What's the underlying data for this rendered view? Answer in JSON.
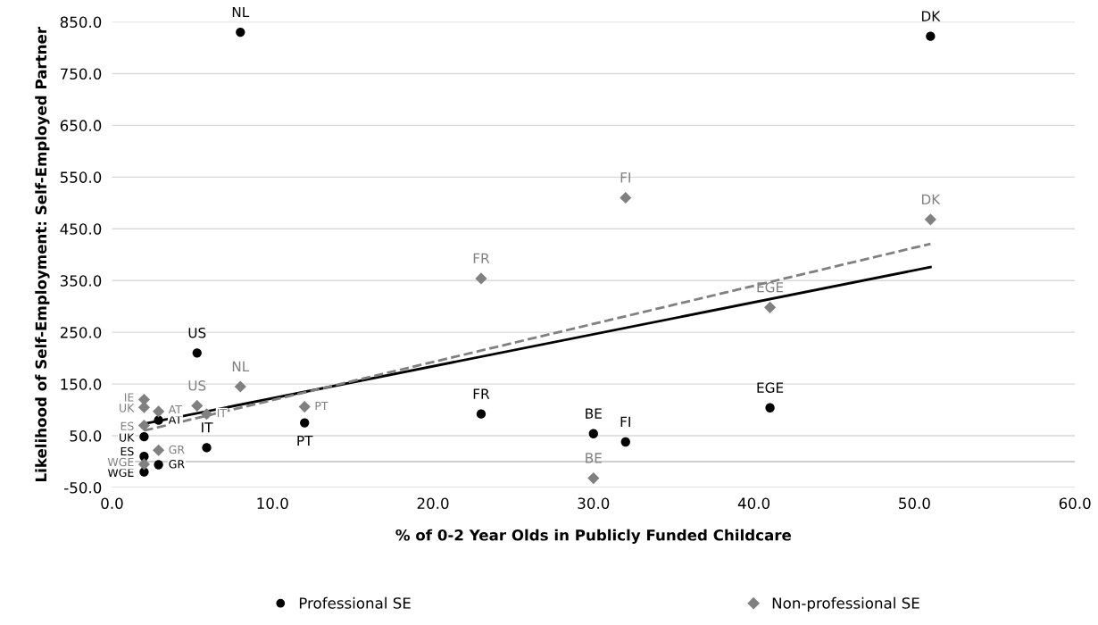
{
  "chart_data": {
    "type": "scatter",
    "xlabel": "% of 0-2 Year Olds in Publicly Funded Childcare",
    "ylabel": "Likelihood of Self-Employment: Self-Employed Partner",
    "xlim": [
      0,
      60
    ],
    "xticks": [
      {
        "value": 0,
        "label": "0.0"
      },
      {
        "value": 10,
        "label": "10.0"
      },
      {
        "value": 20,
        "label": "20.0"
      },
      {
        "value": 30,
        "label": "30.0"
      },
      {
        "value": 40,
        "label": "40.0"
      },
      {
        "value": 50,
        "label": "50.0"
      },
      {
        "value": 60,
        "label": "60.0"
      }
    ],
    "ylim": [
      -50,
      850
    ],
    "yticks": [
      {
        "value": -50,
        "label": "-50.0"
      },
      {
        "value": 50,
        "label": "50.0"
      },
      {
        "value": 150,
        "label": "150.0"
      },
      {
        "value": 250,
        "label": "250.0"
      },
      {
        "value": 350,
        "label": "350.0"
      },
      {
        "value": 450,
        "label": "450.0"
      },
      {
        "value": 550,
        "label": "550.0"
      },
      {
        "value": 650,
        "label": "650.0"
      },
      {
        "value": 750,
        "label": "750.0"
      },
      {
        "value": 850,
        "label": "850.0"
      }
    ],
    "grid": "y",
    "legend": "bottom",
    "ref_lines": [
      {
        "axis": "y",
        "value": 0,
        "color": "#bfbfbf"
      }
    ],
    "series": [
      {
        "name": "Professional SE",
        "marker": "circle",
        "color": "#000000",
        "x": [
          8,
          51,
          5.3,
          5.9,
          12,
          23,
          30,
          32,
          41,
          2.9,
          2.9,
          2,
          2,
          2
        ],
        "values": [
          830,
          822,
          210,
          27,
          75,
          92,
          54,
          38,
          104,
          80,
          -6,
          48,
          10,
          -20
        ]
      },
      {
        "name": "Non-professional SE",
        "marker": "diamond",
        "color": "#808080",
        "x": [
          32,
          51,
          23,
          41,
          8,
          5.3,
          5.9,
          12,
          30,
          2,
          2,
          2.9,
          2,
          2.9,
          2
        ],
        "values": [
          510,
          468,
          354,
          298,
          145,
          108,
          92,
          106,
          -32,
          120,
          105,
          97,
          70,
          22,
          -5
        ]
      },
      {
        "type": "line",
        "line_style": "solid",
        "marker": "none",
        "color": "#000000",
        "x": [
          2,
          51
        ],
        "values": [
          73,
          376
        ]
      },
      {
        "type": "line",
        "line_style": "dashed",
        "marker": "none",
        "color": "#808080",
        "x": [
          2,
          51
        ],
        "values": [
          60,
          421
        ]
      }
    ],
    "annotations": [
      {
        "text": "NL",
        "x": 8,
        "y": 830
      },
      {
        "text": "DK",
        "x": 51,
        "y": 822
      },
      {
        "text": "US",
        "x": 5.3,
        "y": 210
      },
      {
        "text": "IT",
        "x": 5.9,
        "y": 27
      },
      {
        "text": "PT",
        "x": 12,
        "y": 75
      },
      {
        "text": "FR",
        "x": 23,
        "y": 92
      },
      {
        "text": "BE",
        "x": 30,
        "y": 54
      },
      {
        "text": "FI",
        "x": 32,
        "y": 38
      },
      {
        "text": "EGE",
        "x": 41,
        "y": 104
      },
      {
        "text": "AT",
        "x": 2.9,
        "y": 80
      },
      {
        "text": "GR",
        "x": 2.9,
        "y": -6
      },
      {
        "text": "UK",
        "x": 2,
        "y": 48
      },
      {
        "text": "ES",
        "x": 2,
        "y": 10
      },
      {
        "text": "WGE",
        "x": 2,
        "y": -20
      },
      {
        "text": "FI",
        "x": 32,
        "y": 510
      },
      {
        "text": "DK",
        "x": 51,
        "y": 468
      },
      {
        "text": "FR",
        "x": 23,
        "y": 354
      },
      {
        "text": "EGE",
        "x": 41,
        "y": 298
      },
      {
        "text": "NL",
        "x": 8,
        "y": 145
      },
      {
        "text": "US",
        "x": 5.3,
        "y": 108
      },
      {
        "text": "IT",
        "x": 5.9,
        "y": 92
      },
      {
        "text": "PT",
        "x": 12,
        "y": 106
      },
      {
        "text": "BE",
        "x": 30,
        "y": -32
      },
      {
        "text": "IE",
        "x": 2,
        "y": 120
      },
      {
        "text": "UK",
        "x": 2,
        "y": 105
      },
      {
        "text": "AT",
        "x": 2.9,
        "y": 97
      },
      {
        "text": "ES",
        "x": 2,
        "y": 70
      },
      {
        "text": "GR",
        "x": 2.9,
        "y": 22
      },
      {
        "text": "WGE",
        "x": 2,
        "y": -5
      }
    ]
  }
}
